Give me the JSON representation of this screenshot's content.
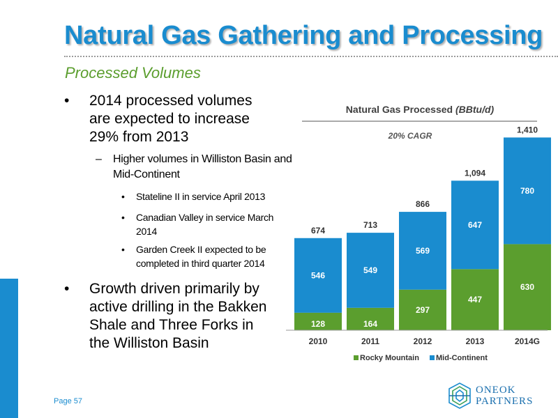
{
  "title": "Natural Gas Gathering and Processing",
  "subtitle": "Processed Volumes",
  "bullets": [
    {
      "text": "2014 processed volumes are expected to increase 29% from 2013"
    },
    {
      "text": "Higher volumes in Williston Basin and Mid-Continent"
    },
    {
      "text": "Stateline II in service April 2013"
    },
    {
      "text": "Canadian Valley in service March 2014"
    },
    {
      "text": "Garden Creek II expected to be completed in third quarter 2014"
    },
    {
      "text": "Growth driven primarily by active drilling in the Bakken Shale and Three Forks in the Williston Basin"
    }
  ],
  "page_label": "Page 57",
  "logo": {
    "line1": "ONEOK",
    "line2": "PARTNERS"
  },
  "colors": {
    "title": "#1a8ccf",
    "subtitle": "#5b9e2e",
    "rocky_mountain": "#5b9e2e",
    "mid_continent": "#1a8ccf"
  },
  "chart_data": {
    "type": "bar",
    "stacked": true,
    "title": "Natural Gas Processed",
    "title_unit": "(BBtu/d)",
    "annotation": "20% CAGR",
    "categories": [
      "2010",
      "2011",
      "2012",
      "2013",
      "2014G"
    ],
    "series": [
      {
        "name": "Rocky Mountain",
        "values": [
          128,
          164,
          297,
          447,
          630
        ],
        "color": "#5b9e2e"
      },
      {
        "name": "Mid-Continent",
        "values": [
          546,
          549,
          569,
          647,
          780
        ],
        "color": "#1a8ccf"
      }
    ],
    "totals": [
      "674",
      "713",
      "866",
      "1,094",
      "1,410"
    ],
    "ylim": [
      0,
      1500
    ],
    "legend_position": "bottom",
    "grid": false
  }
}
